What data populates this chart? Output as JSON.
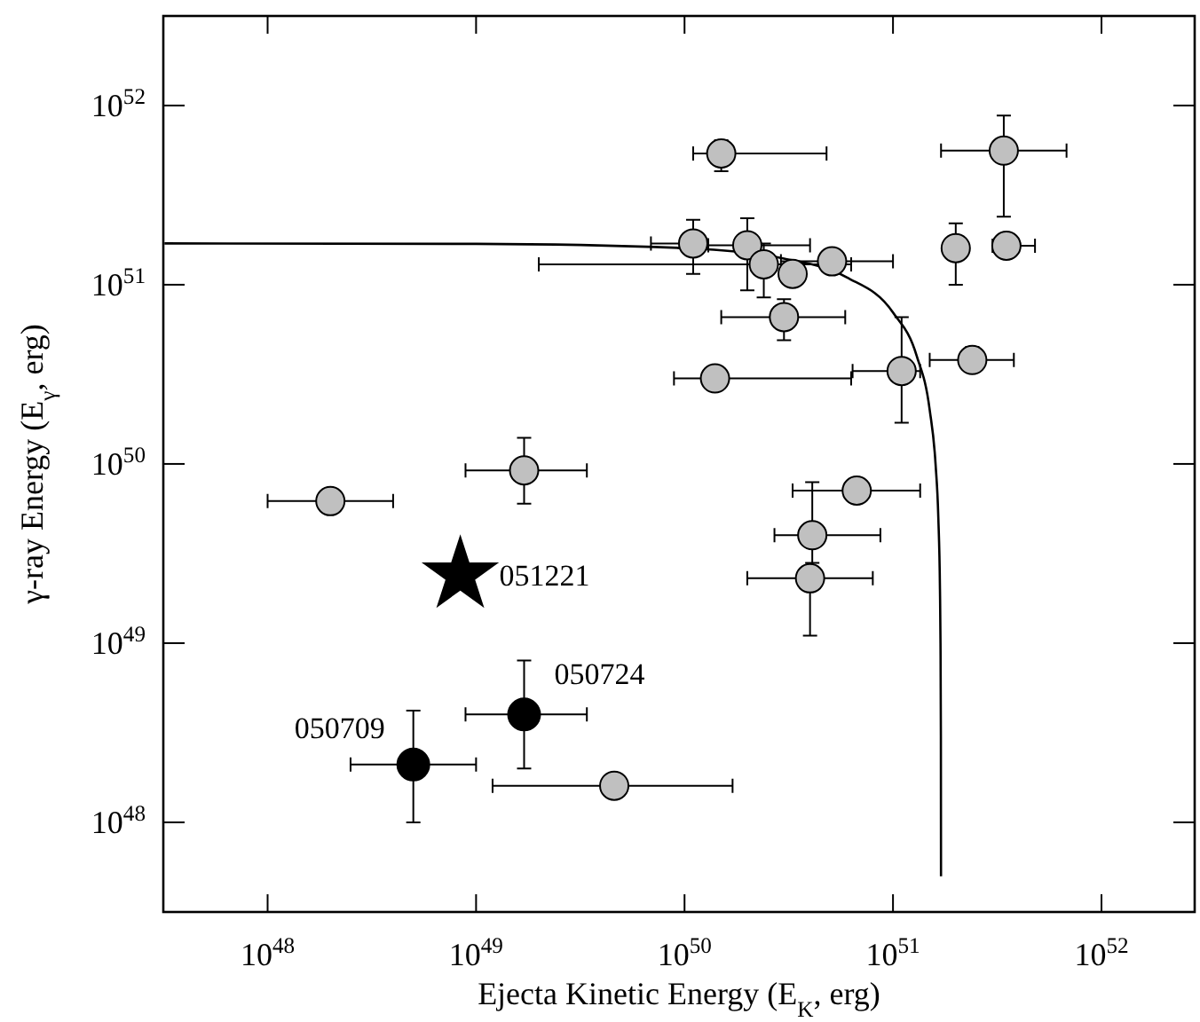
{
  "chart_data": {
    "type": "scatter",
    "xlabel": "Ejecta Kinetic Energy (E$_{K}$, erg)",
    "ylabel": "γ-ray Energy (E$_{γ}$, erg)",
    "log": "xy",
    "xlim": [
      3.16e+47,
      2.8e+52
    ],
    "ylim": [
      3.16e+47,
      3.16e+52
    ],
    "xticks": [
      {
        "value": 1e+48,
        "label": "10$^{48}$"
      },
      {
        "value": 1e+49,
        "label": "10$^{49}$"
      },
      {
        "value": 1e+50,
        "label": "10$^{50}$"
      },
      {
        "value": 1e+51,
        "label": "10$^{51}$"
      },
      {
        "value": 1e+52,
        "label": "10$^{52}$"
      }
    ],
    "yticks": [
      {
        "value": 1e+48,
        "label": "10$^{48}$"
      },
      {
        "value": 1e+49,
        "label": "10$^{49}$"
      },
      {
        "value": 1e+50,
        "label": "10$^{50}$"
      },
      {
        "value": 1e+51,
        "label": "10$^{51}$"
      },
      {
        "value": 1e+52,
        "label": "10$^{52}$"
      }
    ],
    "grid": false,
    "series": [
      {
        "type": "line",
        "color": "#000000",
        "marker": "none",
        "line_style": "solid",
        "x": [
          3.2e+47,
          1e+49,
          1e+50,
          3e+50,
          6e+50,
          1e+51,
          1.3e+51,
          1.5e+51,
          1.6e+51,
          1.65e+51,
          1.68e+51,
          1.69e+51,
          1.697e+51,
          1.6995e+51
        ],
        "values": [
          1.7e+51,
          1.69e+51,
          1.6e+51,
          1.4e+51,
          1.1e+51,
          7e+50,
          4e+50,
          2e+50,
          1e+50,
          5e+49,
          2e+49,
          1e+49,
          3e+48,
          5e+47
        ]
      },
      {
        "color": "#c0c0c0",
        "marker": "circle",
        "x": [
          1.7e+49,
          2e+48,
          4.6e+49,
          6.7e+50,
          4.1e+50,
          4e+50,
          1.5e+50,
          3.4e+51,
          1.1e+50,
          2e+50,
          2.4e+50,
          3.3e+50,
          5.1e+50,
          2e+51,
          3.5e+51,
          3e+50,
          1.4e+50,
          1.1e+51,
          2.4e+51
        ],
        "values": [
          9.2e+49,
          6.2e+49,
          1.6e+48,
          7.1e+49,
          4e+49,
          2.3e+49,
          5.4e+51,
          5.6e+51,
          1.7e+51,
          1.66e+51,
          1.3e+51,
          1.15e+51,
          1.35e+51,
          1.6e+51,
          1.65e+51,
          6.6e+50,
          3e+50,
          3.3e+50,
          3.8e+50
        ],
        "xerrors": [
          [
            8.9e+48,
            3.4e+49
          ],
          [
            1e+48,
            4e+48
          ],
          [
            1.2e+49,
            1.7e+50
          ],
          [
            3.3e+50,
            1.35e+51
          ],
          [
            2.7e+50,
            8.7e+50
          ],
          [
            2e+50,
            8e+50
          ],
          [
            1.1e+50,
            4.8e+50
          ],
          [
            1.7e+51,
            6.8e+51
          ],
          [
            6.9e+49,
            1.1e+50
          ],
          [
            1.3e+50,
            4e+50
          ],
          [
            2e+49,
            6.3e+50
          ],
          null,
          [
            2.9e+50,
            1e+51
          ],
          null,
          [
            3e+51,
            4.8e+51
          ],
          [
            1.5e+50,
            5.9e+50
          ],
          [
            8.9e+49,
            6.3e+50
          ],
          [
            6.4e+50,
            1.35e+51
          ],
          [
            1.5e+51,
            3.8e+51
          ]
        ],
        "errors": [
          [
            6e+49,
            1.4e+50
          ],
          null,
          null,
          null,
          [
            2.8e+49,
            7.9e+49
          ],
          [
            1.1e+49,
            2.3e+49
          ],
          [
            4.3e+51,
            6.4e+51
          ],
          [
            2.4e+51,
            8.8e+51
          ],
          [
            1.15e+51,
            2.3e+51
          ],
          [
            9.3e+50,
            2.35e+51
          ],
          [
            8.5e+50,
            1.7e+51
          ],
          null,
          null,
          [
            1e+51,
            2.2e+51
          ],
          null,
          [
            4.9e+50,
            8.3e+50
          ],
          null,
          [
            1.7e+50,
            6.6e+50
          ],
          [
            3.3e+50,
            4.5e+50
          ]
        ]
      },
      {
        "color": "#000000",
        "marker": "circle",
        "x": [
          1.7e+49,
          5e+48
        ],
        "values": [
          4e+48,
          2.1e+48
        ],
        "xerrors": [
          [
            8.9e+48,
            3.4e+49
          ],
          [
            2.5e+48,
            1e+49
          ]
        ],
        "errors": [
          [
            2e+48,
            8e+48
          ],
          [
            1e+48,
            4.2e+48
          ]
        ]
      },
      {
        "color": "#000000",
        "marker": "star",
        "x": [
          8.4e+48
        ],
        "values": [
          2.4e+49
        ]
      }
    ],
    "annotations": [
      {
        "text": "051221",
        "x": 8.4e+48,
        "y": 2.4e+49
      },
      {
        "text": "050724",
        "x": 1.7e+49,
        "y": 4e+48
      },
      {
        "text": "050709",
        "x": 5e+48,
        "y": 2.1e+48
      }
    ]
  }
}
